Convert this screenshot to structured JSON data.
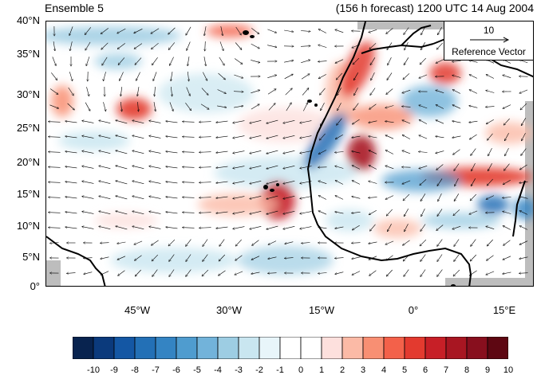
{
  "title_left": "Ensemble 5",
  "title_right": "(156 h forecast) 1200 UTC 14 Aug 2004",
  "lat_labels": [
    "40°N",
    "35°N",
    "30°N",
    "25°N",
    "20°N",
    "15°N",
    "10°N",
    "5°N",
    "0°"
  ],
  "lon_labels": [
    "45°W",
    "30°W",
    "15°W",
    "0°",
    "15°E"
  ],
  "reference_vector": {
    "value": "10",
    "label": "Reference Vector"
  },
  "colorbar": {
    "labels": [
      "-10",
      "-9",
      "-8",
      "-7",
      "-6",
      "-5",
      "-4",
      "-3",
      "-2",
      "-1",
      "0",
      "1",
      "2",
      "3",
      "4",
      "5",
      "6",
      "7",
      "8",
      "9",
      "10"
    ],
    "colors": [
      "#08234f",
      "#0b3a7c",
      "#1457a4",
      "#2370b6",
      "#3484c3",
      "#4f9ccf",
      "#72b3da",
      "#9dcde3",
      "#c9e6f0",
      "#e8f5fa",
      "#ffffff",
      "#ffffff",
      "#fde0dd",
      "#fbbaa6",
      "#f88f73",
      "#f3614a",
      "#e33a2f",
      "#c71f27",
      "#a81622",
      "#880f1e",
      "#5e0712"
    ]
  },
  "colors": {
    "land": "#ffffff",
    "missing": "#bdbdbd",
    "coast": "#000000"
  }
}
